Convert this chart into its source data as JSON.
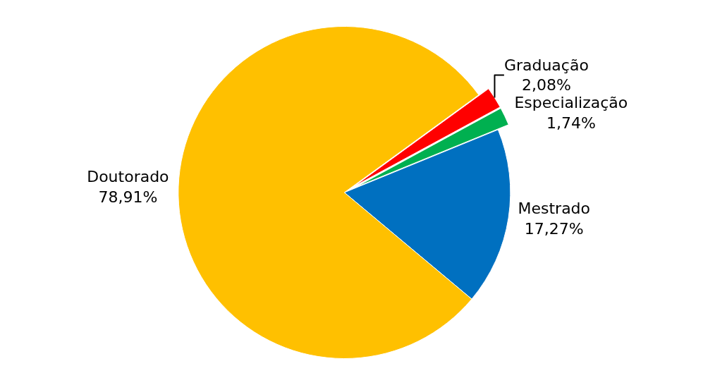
{
  "chart_data": {
    "type": "pie",
    "categories": [
      "Graduação",
      "Especialização",
      "Mestrado",
      "Doutorado"
    ],
    "values": [
      2.08,
      1.74,
      17.27,
      78.91
    ],
    "value_labels": [
      "2,08%",
      "1,74%",
      "17,27%",
      "78,91%"
    ],
    "colors": [
      "#ff0000",
      "#00b050",
      "#0070c0",
      "#ffc000"
    ],
    "legend": false
  }
}
